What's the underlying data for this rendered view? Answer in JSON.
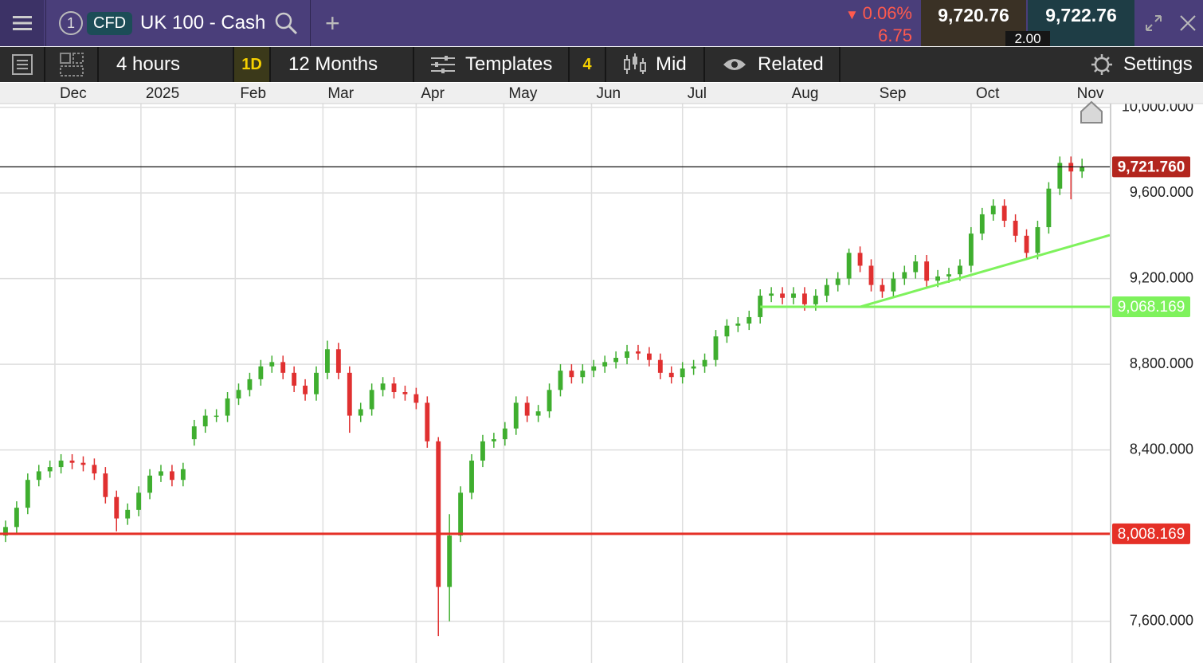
{
  "header": {
    "instrument_number": "1",
    "badge": "CFD",
    "instrument": "UK 100 - Cash",
    "change_percent": "0.06%",
    "change_points": "6.75",
    "sell_price": "9,720.76",
    "buy_price": "9,722.76",
    "spread": "2.00"
  },
  "toolbar": {
    "interval": "4 hours",
    "period_button": "1D",
    "range": "12 Months",
    "templates": "Templates",
    "templates_count": "4",
    "price_type": "Mid",
    "related": "Related",
    "settings": "Settings"
  },
  "chart_data": {
    "type": "candlestick",
    "grid": true,
    "up_color": "#3fae2f",
    "down_color": "#e03030",
    "xlim": [
      -0.5,
      99.5
    ],
    "ylim": [
      7405,
      10017
    ],
    "xticks": [
      {
        "value": 4.45,
        "label": "Dec"
      },
      {
        "value": 12.2,
        "label": "2025"
      },
      {
        "value": 20.7,
        "label": "Feb"
      },
      {
        "value": 28.6,
        "label": "Mar"
      },
      {
        "value": 37.0,
        "label": "Apr"
      },
      {
        "value": 44.9,
        "label": "May"
      },
      {
        "value": 52.8,
        "label": "Jun"
      },
      {
        "value": 61.0,
        "label": "Jul"
      },
      {
        "value": 70.4,
        "label": "Aug"
      },
      {
        "value": 78.3,
        "label": "Sep"
      },
      {
        "value": 87.0,
        "label": "Oct"
      },
      {
        "value": 96.1,
        "label": "Nov"
      }
    ],
    "yticks": [
      {
        "value": 7600,
        "label": "7,600.000"
      },
      {
        "value": 8400,
        "label": "8,400.000"
      },
      {
        "value": 8800,
        "label": "8,800.000"
      },
      {
        "value": 9200,
        "label": "9,200.000"
      },
      {
        "value": 9600,
        "label": "9,600.000"
      },
      {
        "value": 10000,
        "label": "10,000.000"
      }
    ],
    "open": [
      8000,
      8040,
      8130,
      8260,
      8300,
      8320,
      8350,
      8340,
      8330,
      8290,
      8180,
      8080,
      8120,
      8200,
      8280,
      8300,
      8260,
      8450,
      8510,
      8560,
      8560,
      8640,
      8680,
      8730,
      8790,
      8810,
      8760,
      8700,
      8660,
      8760,
      8870,
      8760,
      8560,
      8590,
      8680,
      8710,
      8670,
      8660,
      8620,
      8440,
      7760,
      8000,
      8200,
      8350,
      8440,
      8450,
      8500,
      8620,
      8560,
      8580,
      8680,
      8770,
      8740,
      8770,
      8790,
      8810,
      8830,
      8860,
      8850,
      8820,
      8760,
      8740,
      8780,
      8790,
      8820,
      8930,
      8980,
      8990,
      9020,
      9120,
      9130,
      9110,
      9130,
      9080,
      9120,
      9170,
      9200,
      9320,
      9260,
      9170,
      9140,
      9200,
      9230,
      9280,
      9190,
      9210,
      9220,
      9260,
      9410,
      9500,
      9540,
      9470,
      9400,
      9320,
      9440,
      9620,
      9740,
      9700
    ],
    "high": [
      8070,
      8160,
      8290,
      8330,
      8350,
      8380,
      8380,
      8370,
      8360,
      8320,
      8210,
      8150,
      8230,
      8310,
      8330,
      8330,
      8340,
      8540,
      8590,
      8590,
      8670,
      8710,
      8760,
      8820,
      8840,
      8840,
      8790,
      8730,
      8790,
      8910,
      8900,
      8790,
      8620,
      8710,
      8740,
      8740,
      8700,
      8690,
      8650,
      8460,
      8100,
      8230,
      8380,
      8470,
      8480,
      8530,
      8650,
      8650,
      8610,
      8710,
      8800,
      8800,
      8800,
      8820,
      8840,
      8860,
      8890,
      8890,
      8880,
      8850,
      8790,
      8810,
      8820,
      8850,
      8960,
      9010,
      9020,
      9050,
      9150,
      9160,
      9160,
      9160,
      9160,
      9150,
      9200,
      9230,
      9340,
      9350,
      9290,
      9200,
      9230,
      9260,
      9310,
      9310,
      9240,
      9250,
      9290,
      9440,
      9530,
      9570,
      9570,
      9500,
      9430,
      9470,
      9650,
      9770,
      9770,
      9760
    ],
    "low": [
      7970,
      8010,
      8100,
      8230,
      8270,
      8290,
      8310,
      8300,
      8260,
      8150,
      8020,
      8050,
      8090,
      8170,
      8250,
      8230,
      8230,
      8420,
      8480,
      8530,
      8530,
      8610,
      8650,
      8700,
      8760,
      8730,
      8670,
      8630,
      8630,
      8730,
      8730,
      8480,
      8530,
      8560,
      8650,
      8640,
      8630,
      8590,
      8410,
      7531,
      7600,
      7970,
      8170,
      8320,
      8410,
      8420,
      8470,
      8530,
      8530,
      8550,
      8650,
      8710,
      8710,
      8740,
      8760,
      8780,
      8800,
      8820,
      8790,
      8730,
      8710,
      8710,
      8750,
      8760,
      8790,
      8900,
      8950,
      8960,
      8990,
      9090,
      9080,
      9080,
      9050,
      9050,
      9090,
      9140,
      9170,
      9230,
      9140,
      9110,
      9110,
      9170,
      9200,
      9160,
      9160,
      9180,
      9190,
      9230,
      9380,
      9470,
      9440,
      9370,
      9290,
      9290,
      9410,
      9590,
      9570,
      9670
    ],
    "close": [
      8040,
      8130,
      8260,
      8300,
      8320,
      8350,
      8340,
      8330,
      8290,
      8180,
      8080,
      8120,
      8200,
      8280,
      8300,
      8260,
      8310,
      8510,
      8560,
      8560,
      8640,
      8680,
      8730,
      8790,
      8810,
      8760,
      8700,
      8660,
      8760,
      8870,
      8760,
      8560,
      8590,
      8680,
      8710,
      8670,
      8660,
      8620,
      8440,
      7760,
      8000,
      8200,
      8350,
      8440,
      8450,
      8500,
      8620,
      8560,
      8580,
      8680,
      8770,
      8740,
      8770,
      8790,
      8810,
      8830,
      8860,
      8850,
      8820,
      8760,
      8740,
      8780,
      8790,
      8820,
      8930,
      8980,
      8990,
      9020,
      9120,
      9130,
      9110,
      9130,
      9080,
      9120,
      9170,
      9200,
      9320,
      9260,
      9170,
      9140,
      9200,
      9230,
      9280,
      9190,
      9210,
      9220,
      9260,
      9410,
      9500,
      9540,
      9470,
      9400,
      9320,
      9440,
      9620,
      9740,
      9700,
      9721.76
    ],
    "hlines": [
      {
        "value": 9721.76,
        "label": "9,721.760",
        "color": "#111111",
        "label_color": "#b3261e",
        "start": -0.5
      },
      {
        "value": 9068.169,
        "label": "9,068.169",
        "color": "#7ef25c",
        "label_color": "#7ef25c",
        "start": 68
      },
      {
        "value": 8008.169,
        "label": "8,008.169",
        "color": "#e53027",
        "label_color": "#e53027",
        "start": -0.5
      }
    ],
    "trendline": {
      "color": "#7ef25c",
      "x": [
        77,
        99.5
      ],
      "y": [
        9068.169,
        9403
      ]
    }
  }
}
